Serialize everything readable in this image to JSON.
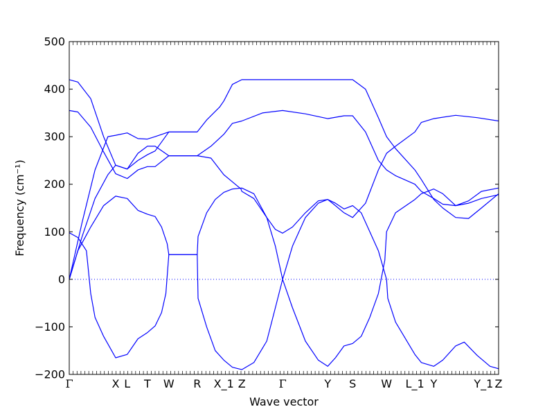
{
  "chart_data": {
    "type": "line",
    "title": "",
    "xlabel": "Wave vector",
    "ylabel": "Frequency (cm⁻¹)",
    "ylim": [
      -200,
      500
    ],
    "yticks": [
      -200,
      -100,
      0,
      100,
      200,
      300,
      400,
      500
    ],
    "grid": false,
    "legend": "none",
    "line_color": "#0000ff",
    "zero_line": {
      "y": 0,
      "style": "dotted"
    },
    "kpoints": [
      {
        "label": "Γ",
        "x": 0
      },
      {
        "label": "X",
        "x": 0.108
      },
      {
        "label": "L",
        "x": 0.135
      },
      {
        "label": "T",
        "x": 0.182
      },
      {
        "label": "W",
        "x": 0.232
      },
      {
        "label": "R",
        "x": 0.298
      },
      {
        "label": "X_1",
        "x": 0.36
      },
      {
        "label": "Z",
        "x": 0.402
      },
      {
        "label": "Γ",
        "x": 0.497
      },
      {
        "label": "Y",
        "x": 0.602
      },
      {
        "label": "S",
        "x": 0.66
      },
      {
        "label": "W",
        "x": 0.739
      },
      {
        "label": "L_1",
        "x": 0.805
      },
      {
        "label": "Y",
        "x": 0.849
      },
      {
        "label": "Y_1",
        "x": 0.965
      },
      {
        "label": "Z",
        "x": 1.0
      }
    ],
    "series": [
      {
        "points": [
          [
            0,
            420
          ],
          [
            0.02,
            415
          ],
          [
            0.05,
            380
          ],
          [
            0.08,
            300
          ],
          [
            0.108,
            240
          ],
          [
            0.135,
            232
          ],
          [
            0.16,
            265
          ],
          [
            0.182,
            280
          ],
          [
            0.2,
            280
          ],
          [
            0.232,
            260
          ],
          [
            0.298,
            260
          ],
          [
            0.33,
            255
          ],
          [
            0.36,
            220
          ],
          [
            0.4,
            190
          ],
          [
            0.402,
            185
          ],
          [
            0.43,
            170
          ],
          [
            0.46,
            130
          ],
          [
            0.48,
            105
          ],
          [
            0.497,
            97
          ],
          [
            0.52,
            110
          ],
          [
            0.55,
            140
          ],
          [
            0.58,
            165
          ],
          [
            0.602,
            168
          ],
          [
            0.62,
            155
          ],
          [
            0.64,
            140
          ],
          [
            0.66,
            130
          ],
          [
            0.69,
            160
          ],
          [
            0.72,
            230
          ],
          [
            0.739,
            265
          ],
          [
            0.76,
            280
          ],
          [
            0.805,
            310
          ],
          [
            0.82,
            330
          ],
          [
            0.849,
            338
          ],
          [
            0.9,
            345
          ],
          [
            0.95,
            340
          ],
          [
            1.0,
            333
          ]
        ]
      },
      {
        "points": [
          [
            0,
            355
          ],
          [
            0.02,
            352
          ],
          [
            0.05,
            320
          ],
          [
            0.08,
            268
          ],
          [
            0.108,
            222
          ],
          [
            0.135,
            212
          ],
          [
            0.16,
            230
          ],
          [
            0.182,
            237
          ],
          [
            0.2,
            237
          ],
          [
            0.232,
            260
          ],
          [
            0.298,
            260
          ],
          [
            0.33,
            280
          ],
          [
            0.36,
            305
          ],
          [
            0.38,
            328
          ],
          [
            0.402,
            333
          ],
          [
            0.45,
            350
          ],
          [
            0.497,
            355
          ],
          [
            0.55,
            348
          ],
          [
            0.602,
            338
          ],
          [
            0.64,
            344
          ],
          [
            0.66,
            344
          ],
          [
            0.69,
            310
          ],
          [
            0.72,
            250
          ],
          [
            0.739,
            230
          ],
          [
            0.76,
            218
          ],
          [
            0.805,
            200
          ],
          [
            0.82,
            185
          ],
          [
            0.849,
            170
          ],
          [
            0.87,
            158
          ],
          [
            0.9,
            155
          ],
          [
            0.93,
            160
          ],
          [
            0.96,
            170
          ],
          [
            1.0,
            178
          ]
        ]
      },
      {
        "points": [
          [
            0,
            0
          ],
          [
            0.03,
            120
          ],
          [
            0.06,
            230
          ],
          [
            0.09,
            300
          ],
          [
            0.108,
            303
          ],
          [
            0.135,
            308
          ],
          [
            0.16,
            296
          ],
          [
            0.182,
            295
          ],
          [
            0.2,
            300
          ],
          [
            0.232,
            310
          ],
          [
            0.298,
            310
          ],
          [
            0.32,
            335
          ],
          [
            0.35,
            362
          ],
          [
            0.36,
            375
          ],
          [
            0.38,
            410
          ],
          [
            0.402,
            420
          ],
          [
            0.45,
            420
          ],
          [
            0.497,
            420
          ],
          [
            0.55,
            420
          ],
          [
            0.602,
            420
          ],
          [
            0.66,
            420
          ],
          [
            0.69,
            400
          ],
          [
            0.72,
            340
          ],
          [
            0.739,
            300
          ],
          [
            0.76,
            275
          ],
          [
            0.805,
            230
          ],
          [
            0.82,
            210
          ],
          [
            0.849,
            168
          ],
          [
            0.87,
            150
          ],
          [
            0.9,
            130
          ],
          [
            0.93,
            128
          ],
          [
            0.96,
            150
          ],
          [
            1.0,
            180
          ]
        ]
      },
      {
        "points": [
          [
            0,
            0
          ],
          [
            0.03,
            90
          ],
          [
            0.06,
            170
          ],
          [
            0.09,
            220
          ],
          [
            0.108,
            240
          ],
          [
            0.135,
            232
          ],
          [
            0.16,
            250
          ],
          [
            0.182,
            262
          ],
          [
            0.2,
            270
          ],
          [
            0.232,
            310
          ],
          [
            0.298,
            310
          ]
        ]
      },
      {
        "points": [
          [
            0,
            0
          ],
          [
            0.02,
            60
          ],
          [
            0.05,
            110
          ],
          [
            0.08,
            155
          ],
          [
            0.108,
            175
          ],
          [
            0.135,
            170
          ],
          [
            0.16,
            145
          ],
          [
            0.182,
            137
          ],
          [
            0.2,
            132
          ],
          [
            0.215,
            110
          ],
          [
            0.228,
            75
          ],
          [
            0.232,
            52
          ],
          [
            0.298,
            52
          ],
          [
            0.3,
            90
          ],
          [
            0.32,
            140
          ],
          [
            0.34,
            168
          ],
          [
            0.36,
            183
          ],
          [
            0.38,
            190
          ],
          [
            0.402,
            192
          ],
          [
            0.43,
            180
          ],
          [
            0.46,
            130
          ],
          [
            0.48,
            70
          ],
          [
            0.497,
            0
          ],
          [
            0.52,
            70
          ],
          [
            0.55,
            130
          ],
          [
            0.58,
            160
          ],
          [
            0.602,
            168
          ],
          [
            0.62,
            160
          ],
          [
            0.64,
            148
          ],
          [
            0.66,
            155
          ],
          [
            0.68,
            140
          ],
          [
            0.7,
            100
          ],
          [
            0.72,
            60
          ],
          [
            0.739,
            0
          ],
          [
            0.742,
            -40
          ],
          [
            0.76,
            -90
          ],
          [
            0.805,
            -158
          ],
          [
            0.82,
            -175
          ],
          [
            0.849,
            -183
          ],
          [
            0.87,
            -170
          ],
          [
            0.9,
            -140
          ],
          [
            0.92,
            -132
          ],
          [
            0.95,
            -160
          ],
          [
            0.98,
            -183
          ],
          [
            1.0,
            -188
          ]
        ]
      },
      {
        "points": [
          [
            0,
            98
          ],
          [
            0.02,
            88
          ],
          [
            0.04,
            60
          ],
          [
            0.05,
            -30
          ],
          [
            0.06,
            -80
          ],
          [
            0.08,
            -120
          ],
          [
            0.108,
            -165
          ],
          [
            0.135,
            -158
          ],
          [
            0.16,
            -125
          ],
          [
            0.182,
            -112
          ],
          [
            0.2,
            -98
          ],
          [
            0.215,
            -70
          ],
          [
            0.225,
            -30
          ],
          [
            0.232,
            52
          ],
          [
            0.298,
            52
          ],
          [
            0.3,
            -40
          ],
          [
            0.32,
            -100
          ],
          [
            0.34,
            -150
          ],
          [
            0.36,
            -170
          ],
          [
            0.38,
            -185
          ],
          [
            0.402,
            -190
          ],
          [
            0.43,
            -175
          ],
          [
            0.46,
            -130
          ],
          [
            0.48,
            -60
          ],
          [
            0.497,
            0
          ],
          [
            0.52,
            -60
          ],
          [
            0.55,
            -130
          ],
          [
            0.58,
            -170
          ],
          [
            0.602,
            -183
          ],
          [
            0.62,
            -165
          ],
          [
            0.64,
            -140
          ],
          [
            0.66,
            -135
          ],
          [
            0.68,
            -120
          ],
          [
            0.7,
            -80
          ],
          [
            0.72,
            -30
          ],
          [
            0.735,
            40
          ],
          [
            0.739,
            100
          ],
          [
            0.76,
            140
          ],
          [
            0.805,
            168
          ],
          [
            0.82,
            180
          ],
          [
            0.849,
            190
          ],
          [
            0.87,
            180
          ],
          [
            0.9,
            155
          ],
          [
            0.93,
            165
          ],
          [
            0.96,
            185
          ],
          [
            1.0,
            192
          ]
        ]
      }
    ]
  }
}
